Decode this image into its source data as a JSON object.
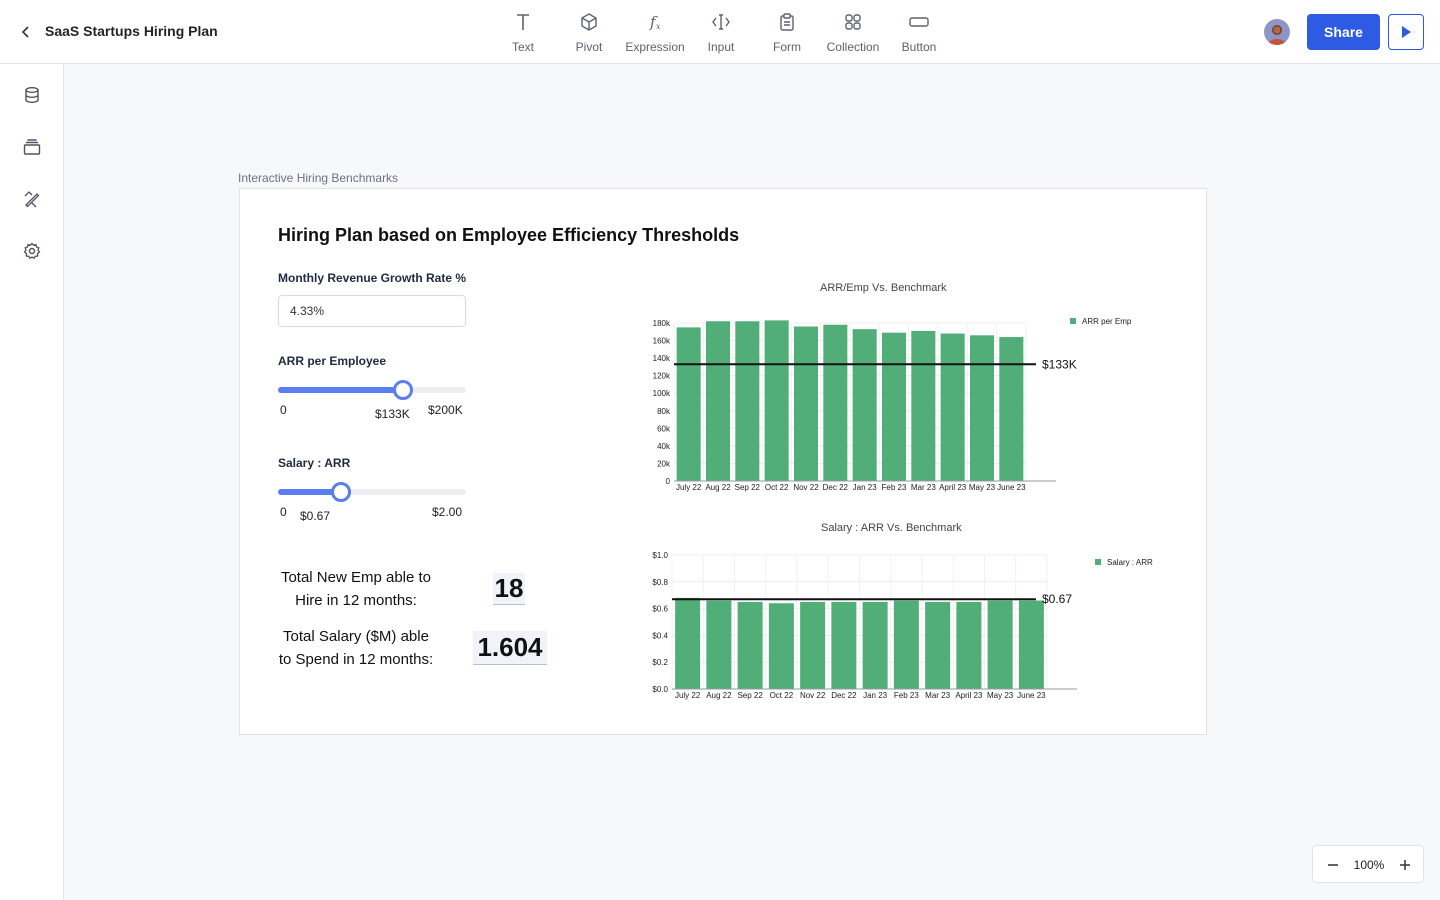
{
  "header": {
    "title": "SaaS Startups Hiring Plan",
    "tools": [
      {
        "label": "Text",
        "icon": "text-icon"
      },
      {
        "label": "Pivot",
        "icon": "cube-icon"
      },
      {
        "label": "Expression",
        "icon": "function-icon"
      },
      {
        "label": "Input",
        "icon": "input-cursor-icon"
      },
      {
        "label": "Form",
        "icon": "clipboard-icon"
      },
      {
        "label": "Collection",
        "icon": "grid-icon"
      },
      {
        "label": "Button",
        "icon": "button-rect-icon"
      }
    ],
    "share_label": "Share"
  },
  "sidebar": {
    "items": [
      {
        "name": "database",
        "icon": "database-icon"
      },
      {
        "name": "layers",
        "icon": "layers-icon"
      },
      {
        "name": "design",
        "icon": "design-tools-icon"
      },
      {
        "name": "settings",
        "icon": "gear-icon"
      }
    ]
  },
  "frame": {
    "label": "Interactive Hiring Benchmarks",
    "title": "Hiring Plan based on Employee Efficiency Thresholds"
  },
  "inputs": {
    "growth": {
      "label": "Monthly Revenue Growth Rate %",
      "value": "4.33%"
    },
    "arr_slider": {
      "label": "ARR per Employee",
      "min_label": "0",
      "max_label": "$200K",
      "value_label": "$133K",
      "min": 0,
      "max": 200,
      "value": 133
    },
    "salary_slider": {
      "label": "Salary : ARR",
      "min_label": "0",
      "max_label": "$2.00",
      "value_label": "$0.67",
      "min": 0,
      "max": 2,
      "value": 0.67
    }
  },
  "stats": {
    "new_emp": {
      "label_line1": "Total New Emp able to",
      "label_line2": "Hire in 12 months:",
      "value": "18"
    },
    "salary": {
      "label_line1": "Total Salary ($M) able",
      "label_line2": "to Spend in 12 months:",
      "value": "1.604"
    }
  },
  "chart_data": [
    {
      "type": "bar",
      "title": "ARR/Emp Vs. Benchmark",
      "categories": [
        "July 22",
        "Aug 22",
        "Sep 22",
        "Oct 22",
        "Nov 22",
        "Dec 22",
        "Jan 23",
        "Feb 23",
        "Mar 23",
        "April 23",
        "May 23",
        "June 23"
      ],
      "series": [
        {
          "name": "ARR per Emp",
          "values": [
            175000,
            182000,
            182000,
            183000,
            176000,
            178000,
            173000,
            169000,
            171000,
            168000,
            166000,
            164000
          ]
        }
      ],
      "benchmark": {
        "value": 133000,
        "label": "$133K"
      },
      "yticks": [
        0,
        20000,
        40000,
        60000,
        80000,
        100000,
        120000,
        140000,
        160000,
        180000
      ],
      "ytick_labels": [
        "0",
        "20k",
        "40k",
        "60k",
        "80k",
        "100k",
        "120k",
        "140k",
        "160k",
        "180k"
      ],
      "ylim": [
        0,
        180000
      ],
      "grid": true,
      "legend": "top-right",
      "color": "#52ae78"
    },
    {
      "type": "bar",
      "title": "Salary : ARR Vs. Benchmark",
      "categories": [
        "July 22",
        "Aug 22",
        "Sep 22",
        "Oct 22",
        "Nov 22",
        "Dec 22",
        "Jan 23",
        "Feb 23",
        "Mar 23",
        "April 23",
        "May 23",
        "June 23"
      ],
      "series": [
        {
          "name": "Salary : ARR",
          "values": [
            0.68,
            0.66,
            0.65,
            0.64,
            0.65,
            0.65,
            0.65,
            0.66,
            0.65,
            0.65,
            0.66,
            0.66
          ]
        }
      ],
      "benchmark": {
        "value": 0.67,
        "label": "$0.67"
      },
      "yticks": [
        0,
        0.2,
        0.4,
        0.6,
        0.8,
        1.0
      ],
      "ytick_labels": [
        "$0.0",
        "$0.2",
        "$0.4",
        "$0.6",
        "$0.8",
        "$1.0"
      ],
      "ylim": [
        0,
        1.0
      ],
      "grid": true,
      "legend": "top-right",
      "color": "#52ae78"
    }
  ],
  "zoom": {
    "value": "100%"
  },
  "colors": {
    "accent": "#2d5be3",
    "slider": "#5a7df0",
    "bar": "#52ae78"
  }
}
